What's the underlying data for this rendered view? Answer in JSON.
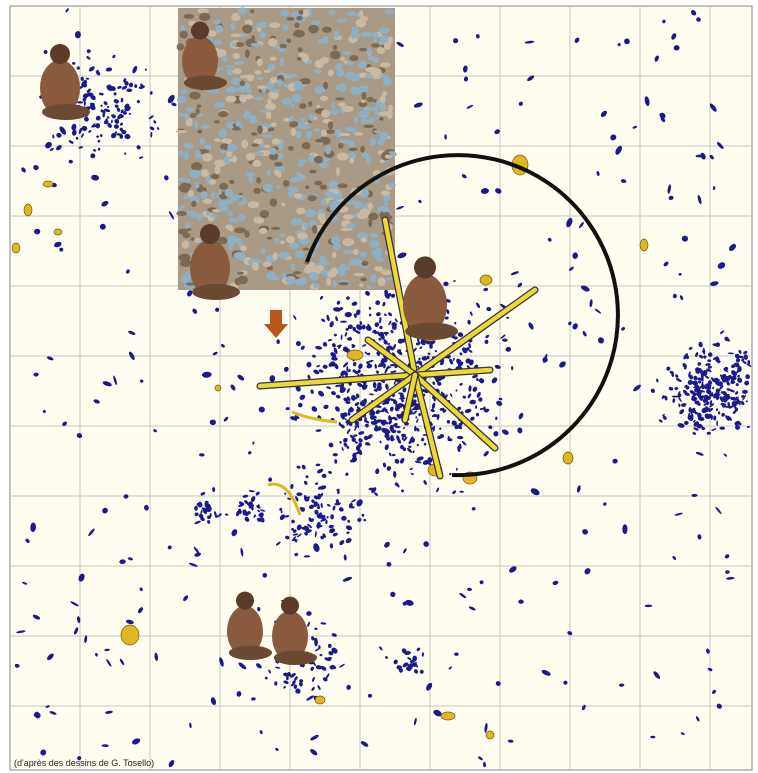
{
  "caption": "(d'après  des dessins de G. Tosello)"
}
